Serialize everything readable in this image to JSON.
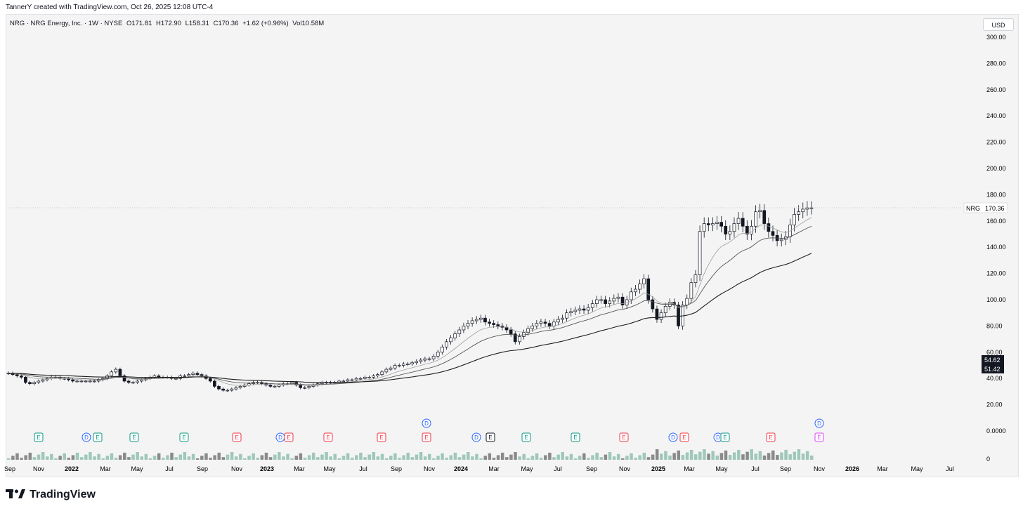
{
  "header": {
    "attribution": "TannerY created with TradingView.com, Oct 26, 2025 12:08 UTC-4"
  },
  "legend": {
    "symbol": "NRG · NRG Energy, Inc. · 1W · NYSE",
    "open": "O171.81",
    "high": "H172.90",
    "low": "L158.31",
    "close": "C170.36",
    "change": "+1.62 (+0.96%)",
    "volume": "Vol10.58M"
  },
  "currency": "USD",
  "price_label": {
    "ticker": "NRG",
    "value": "170.36"
  },
  "ma_labels": [
    "54.62",
    "51.42"
  ],
  "footer": {
    "brand": "TradingView"
  },
  "colors": {
    "up": "#ffffff",
    "down": "#131722",
    "ma": "#3b3b3b",
    "earnings_red": "#f23645",
    "earnings_green": "#089981",
    "dividend_blue": "#2962ff",
    "volume": "#5b9c8a"
  },
  "chart_data": {
    "type": "line",
    "title": "NRG · NRG Energy, Inc. · 1W · NYSE",
    "ylim": [
      0,
      300
    ],
    "y_ticks": [
      "300.00",
      "280.00",
      "260.00",
      "240.00",
      "220.00",
      "200.00",
      "180.00",
      "160.00",
      "140.00",
      "120.00",
      "100.00",
      "80.00",
      "60.00",
      "40.00",
      "20.00",
      "0.0000"
    ],
    "x_ticks": [
      "Sep",
      "Nov",
      "2022",
      "Mar",
      "May",
      "Jul",
      "Sep",
      "Nov",
      "2023",
      "Mar",
      "May",
      "Jul",
      "Sep",
      "Nov",
      "2024",
      "Mar",
      "May",
      "Jul",
      "Sep",
      "Nov",
      "2025",
      "Mar",
      "May",
      "Jul",
      "Sep",
      "Nov",
      "2026",
      "Mar",
      "May",
      "Jul"
    ],
    "series": [
      {
        "values": [
          44,
          43,
          42,
          41,
          37,
          36,
          37,
          38,
          39,
          40,
          41,
          41,
          40,
          40,
          39,
          38,
          38,
          38,
          38,
          38,
          38,
          39,
          40,
          42,
          45,
          47,
          42,
          38,
          37,
          37,
          38,
          39,
          40,
          41,
          42,
          41,
          41,
          41,
          40,
          40,
          42,
          42,
          43,
          44,
          43,
          42,
          40,
          38,
          34,
          32,
          31,
          31,
          32,
          33,
          34,
          35,
          36,
          37,
          37,
          36,
          35,
          34,
          34,
          35,
          36,
          36,
          37,
          35,
          33,
          33,
          34,
          35,
          36,
          37,
          37,
          37,
          37,
          38,
          38,
          39,
          39,
          40,
          40,
          41,
          41,
          42,
          43,
          45,
          47,
          48,
          50,
          50,
          51,
          51,
          52,
          53,
          54,
          55,
          55,
          57,
          60,
          64,
          68,
          71,
          74,
          77,
          80,
          82,
          84,
          85,
          86,
          83,
          82,
          81,
          80,
          79,
          77,
          74,
          68,
          72,
          75,
          78,
          80,
          82,
          83,
          82,
          80,
          83,
          85,
          86,
          90,
          91,
          92,
          93,
          92,
          94,
          97,
          100,
          100,
          97,
          99,
          101,
          102,
          96,
          100,
          106,
          108,
          112,
          116,
          100,
          93,
          85,
          90,
          95,
          98,
          96,
          80,
          96,
          101,
          113,
          119,
          152,
          158,
          157,
          158,
          159,
          156,
          150,
          152,
          158,
          162,
          156,
          150,
          156,
          167,
          168,
          158,
          152,
          149,
          145,
          146,
          148,
          157,
          165,
          167,
          169,
          170,
          170
        ]
      }
    ]
  }
}
